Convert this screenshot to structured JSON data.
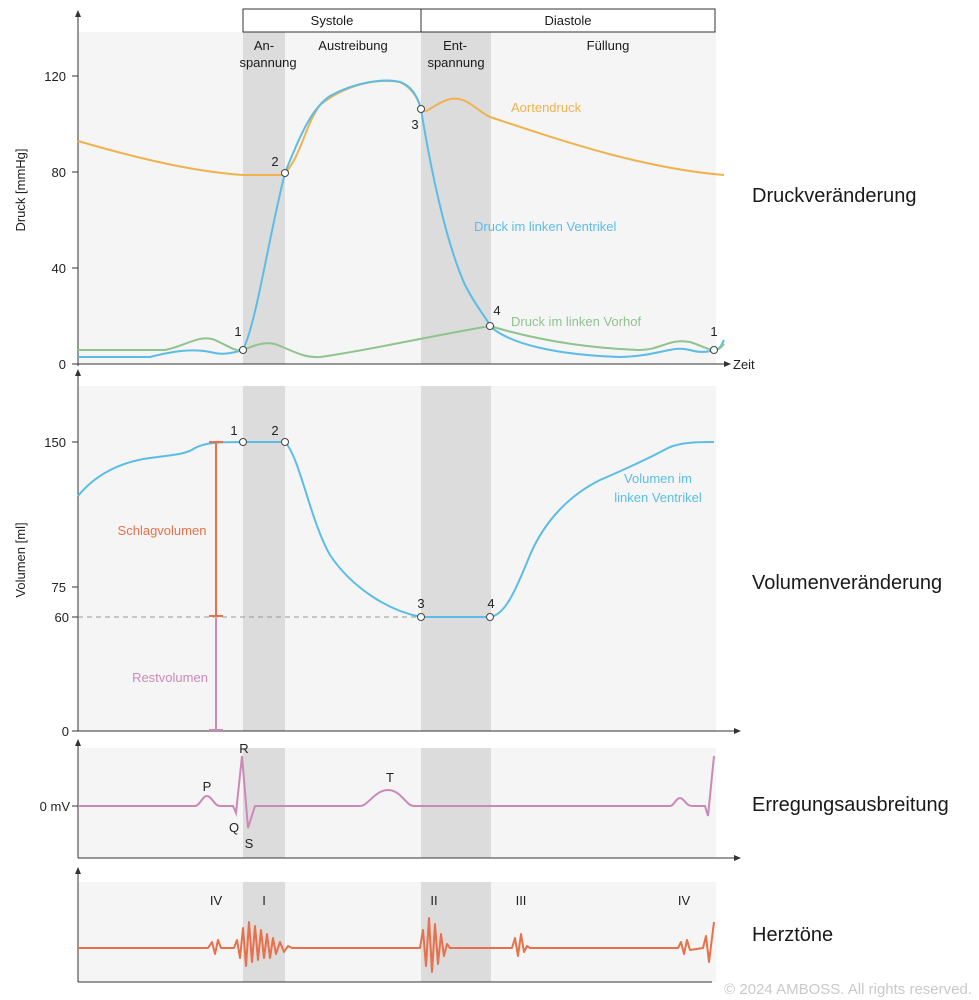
{
  "phases": {
    "systole": "Systole",
    "diastole": "Diastole",
    "anspannung": [
      "An-",
      "spannung"
    ],
    "austreibung": "Austreibung",
    "entspannung": [
      "Ent-",
      "spannung"
    ],
    "fuellung": "Füllung"
  },
  "pressure": {
    "ylabel": "Druck [mmHg]",
    "ticks": [
      "0",
      "40",
      "80",
      "120"
    ],
    "xlabel": "Zeit",
    "section_title": "Druckveränderung",
    "aorta_label": "Aortendruck",
    "ventricle_label": "Druck im linken Ventrikel",
    "atrium_label": "Druck im linken Vorhof",
    "points": [
      "1",
      "2",
      "3",
      "4",
      "1"
    ]
  },
  "volume": {
    "ylabel": "Volumen [ml]",
    "ticks": [
      "0",
      "60",
      "75",
      "150"
    ],
    "section_title": "Volumenveränderung",
    "curve_label": [
      "Volumen im",
      "linken Ventrikel"
    ],
    "stroke_label": "Schlagvolumen",
    "residual_label": "Restvolumen",
    "points": [
      "1",
      "2",
      "3",
      "4"
    ]
  },
  "ecg": {
    "tick": "0 mV",
    "section_title": "Erregungsausbreitung",
    "waves": [
      "P",
      "R",
      "Q",
      "S",
      "T"
    ]
  },
  "sounds": {
    "section_title": "Herztöne",
    "labels": [
      "IV",
      "I",
      "II",
      "III",
      "IV"
    ]
  },
  "colors": {
    "aorta": "#f0b24e",
    "ventricle": "#5bbde6",
    "atrium": "#8fc48f",
    "stroke": "#e8704a",
    "residual": "#c98ab8",
    "ecg": "#c98ab8",
    "sounds": "#e8704a",
    "band": "#dcdcdc",
    "panel": "#f5f5f5"
  },
  "copyright": "© 2024 AMBOSS. All rights reserved."
}
